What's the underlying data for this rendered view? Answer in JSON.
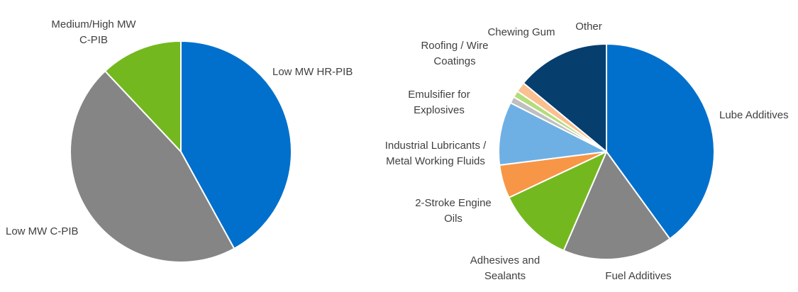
{
  "chart_data": [
    {
      "type": "pie",
      "title": "",
      "start": "top",
      "direction": "clockwise",
      "slices": [
        {
          "label": "Low MW HR-PIB",
          "value": 42,
          "color": "#0070cc"
        },
        {
          "label": "Low MW C-PIB",
          "value": 46,
          "color": "#858585"
        },
        {
          "label": "Medium/High MW C-PIB",
          "value": 12,
          "color": "#74b81f"
        }
      ],
      "labels": [
        {
          "slice": 0,
          "lines": [
            "Low MW HR-PIB"
          ]
        },
        {
          "slice": 1,
          "lines": [
            "Low MW C-PIB"
          ]
        },
        {
          "slice": 2,
          "lines": [
            "Medium/High MW",
            "C-PIB"
          ]
        }
      ]
    },
    {
      "type": "pie",
      "title": "",
      "start": "top",
      "direction": "clockwise",
      "slices": [
        {
          "label": "Lube Additives",
          "value": 40,
          "color": "#0070cc"
        },
        {
          "label": "Fuel Additives",
          "value": 16.5,
          "color": "#858585"
        },
        {
          "label": "Adhesives and Sealants",
          "value": 11.5,
          "color": "#74b81f"
        },
        {
          "label": "2-Stroke Engine Oils",
          "value": 5,
          "color": "#f79646"
        },
        {
          "label": "Industrial Lubricants / Metal Working Fluids",
          "value": 9.5,
          "color": "#6fb0e4"
        },
        {
          "label": "Emulsifier for Explosives",
          "value": 1,
          "color": "#bfbfbf"
        },
        {
          "label": "Roofing / Wire Coatings",
          "value": 1,
          "color": "#b5dc7c"
        },
        {
          "label": "Chewing Gum",
          "value": 1.5,
          "color": "#fac090"
        },
        {
          "label": "Other",
          "value": 14,
          "color": "#063e6e"
        }
      ],
      "labels": [
        {
          "slice": 0,
          "lines": [
            "Lube Additives"
          ]
        },
        {
          "slice": 1,
          "lines": [
            "Fuel Additives"
          ]
        },
        {
          "slice": 2,
          "lines": [
            "Adhesives and",
            "Sealants"
          ]
        },
        {
          "slice": 3,
          "lines": [
            "2-Stroke Engine",
            "Oils"
          ]
        },
        {
          "slice": 4,
          "lines": [
            "Industrial Lubricants /",
            "Metal Working Fluids"
          ]
        },
        {
          "slice": 5,
          "lines": [
            "Emulsifier for",
            "Explosives"
          ]
        },
        {
          "slice": 6,
          "lines": [
            "Roofing / Wire",
            "Coatings"
          ]
        },
        {
          "slice": 7,
          "lines": [
            "Chewing Gum"
          ]
        },
        {
          "slice": 8,
          "lines": [
            "Other"
          ]
        }
      ]
    }
  ]
}
